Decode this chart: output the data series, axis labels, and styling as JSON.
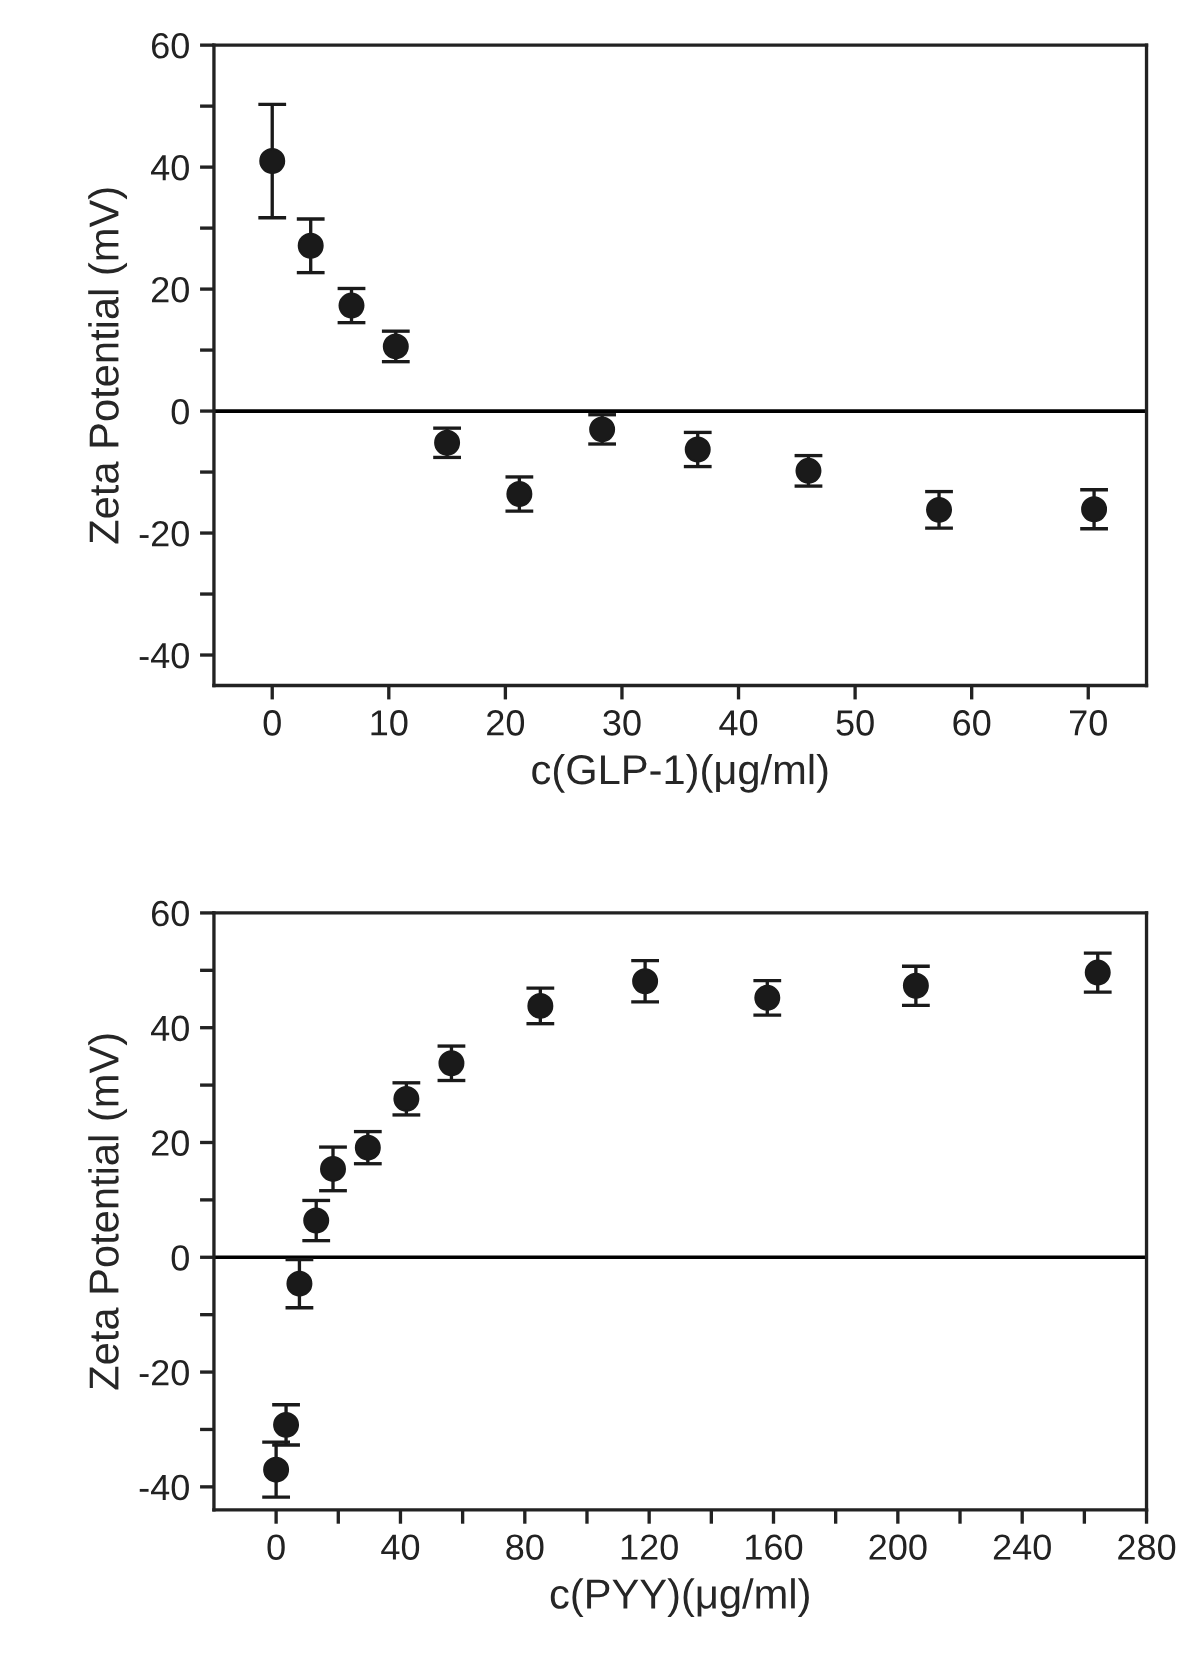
{
  "chart_data": [
    {
      "type": "scatter",
      "xlabel": "c(GLP-1)(μg/ml)",
      "ylabel": "Zeta Potential (mV)",
      "marker": "circle",
      "grid": false,
      "legend": false,
      "x": [
        0,
        3.3,
        6.8,
        10.6,
        15,
        21.2,
        28.3,
        36.5,
        46,
        57.2,
        70.5
      ],
      "series": [
        {
          "color": "#1a1a1a",
          "values": [
            41,
            27.1,
            17.3,
            10.6,
            -5.2,
            -13.6,
            -3.0,
            -6.3,
            -9.8,
            -16.2,
            -16.1
          ],
          "errors": [
            9.3,
            4.4,
            2.8,
            2.5,
            2.4,
            2.8,
            2.4,
            2.8,
            2.5,
            3,
            3.2
          ]
        }
      ],
      "xlim": [
        -5,
        75
      ],
      "xticks": [
        0,
        10,
        20,
        30,
        40,
        50,
        60,
        70
      ],
      "ylim": [
        -45,
        60
      ],
      "yticks": [
        {
          "value": -40,
          "label": "-40"
        },
        {
          "value": -30,
          "label": null
        },
        {
          "value": -20,
          "label": "-20"
        },
        {
          "value": -10,
          "label": null
        },
        0,
        {
          "value": 10,
          "label": null
        },
        20,
        {
          "value": 30,
          "label": null
        },
        40,
        {
          "value": 50,
          "label": null
        },
        60
      ],
      "ref_lines": [
        {
          "axis": "y",
          "value": 0,
          "color": "#000000"
        }
      ]
    },
    {
      "type": "scatter",
      "xlabel": "c(PYY)(μg/ml)",
      "ylabel": "Zeta Potential (mV)",
      "marker": "circle",
      "grid": false,
      "legend": false,
      "x": [
        0,
        3.2,
        7.5,
        12.9,
        18.3,
        29.5,
        41.9,
        56.4,
        85,
        118.7,
        158,
        205.8,
        264.3
      ],
      "series": [
        {
          "color": "#1a1a1a",
          "values": [
            -37,
            -29.2,
            -4.6,
            6.4,
            15.4,
            19.1,
            27.6,
            33.8,
            43.8,
            48.1,
            45.2,
            47.3,
            49.6
          ],
          "errors": [
            4.8,
            3.5,
            4.2,
            3.5,
            3.8,
            2.8,
            2.8,
            3,
            3.1,
            3.6,
            3,
            3.4,
            3.4
          ]
        }
      ],
      "xlim": [
        -20,
        280
      ],
      "xticks": [
        0,
        {
          "value": 20,
          "label": null
        },
        40,
        {
          "value": 60,
          "label": null
        },
        80,
        {
          "value": 100,
          "label": null
        },
        120,
        {
          "value": 140,
          "label": null
        },
        160,
        {
          "value": 180,
          "label": null
        },
        200,
        {
          "value": 220,
          "label": null
        },
        240,
        {
          "value": 260,
          "label": null
        },
        280
      ],
      "ylim": [
        -44,
        60
      ],
      "yticks": [
        {
          "value": -40,
          "label": "-40"
        },
        {
          "value": -30,
          "label": null
        },
        {
          "value": -20,
          "label": "-20"
        },
        {
          "value": -10,
          "label": null
        },
        0,
        {
          "value": 10,
          "label": null
        },
        20,
        {
          "value": 30,
          "label": null
        },
        40,
        {
          "value": 50,
          "label": null
        },
        60
      ],
      "ref_lines": [
        {
          "axis": "y",
          "value": 0,
          "color": "#000000"
        }
      ]
    }
  ]
}
